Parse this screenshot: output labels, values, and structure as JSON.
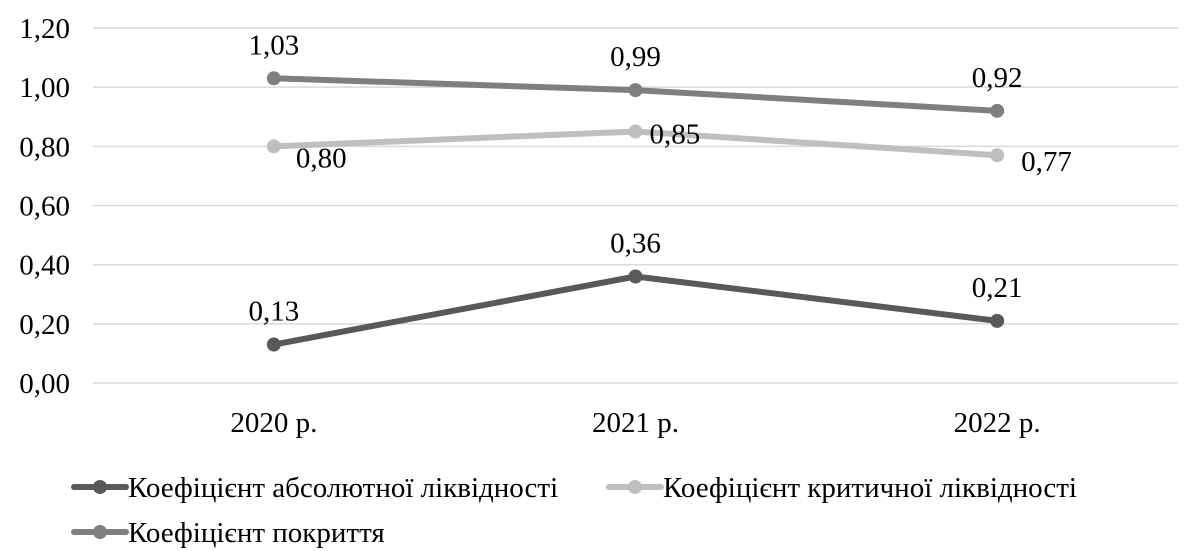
{
  "chart_data": {
    "type": "line",
    "categories": [
      "2020 р.",
      "2021 р.",
      "2022 р."
    ],
    "ylim": [
      0,
      1.2
    ],
    "ytick_labels": [
      "0,00",
      "0,20",
      "0,40",
      "0,60",
      "0,80",
      "1,00",
      "1,20"
    ],
    "grid": true,
    "legend_position": "bottom",
    "series": [
      {
        "name": "Коефіцієнт абсолютної ліквідності",
        "values": [
          0.13,
          0.36,
          0.21
        ],
        "labels": [
          "0,13",
          "0,36",
          "0,21"
        ],
        "color": "#595959"
      },
      {
        "name": "Коефіцієнт критичної ліквідності",
        "values": [
          0.8,
          0.85,
          0.77
        ],
        "labels": [
          "0,80",
          "0,85",
          "0,77"
        ],
        "color": "#bfbfbf"
      },
      {
        "name": "Коефіцієнт покриття",
        "values": [
          1.03,
          0.99,
          0.92
        ],
        "labels": [
          "1,03",
          "0,99",
          "0,92"
        ],
        "color": "#7f7f7f"
      }
    ]
  }
}
